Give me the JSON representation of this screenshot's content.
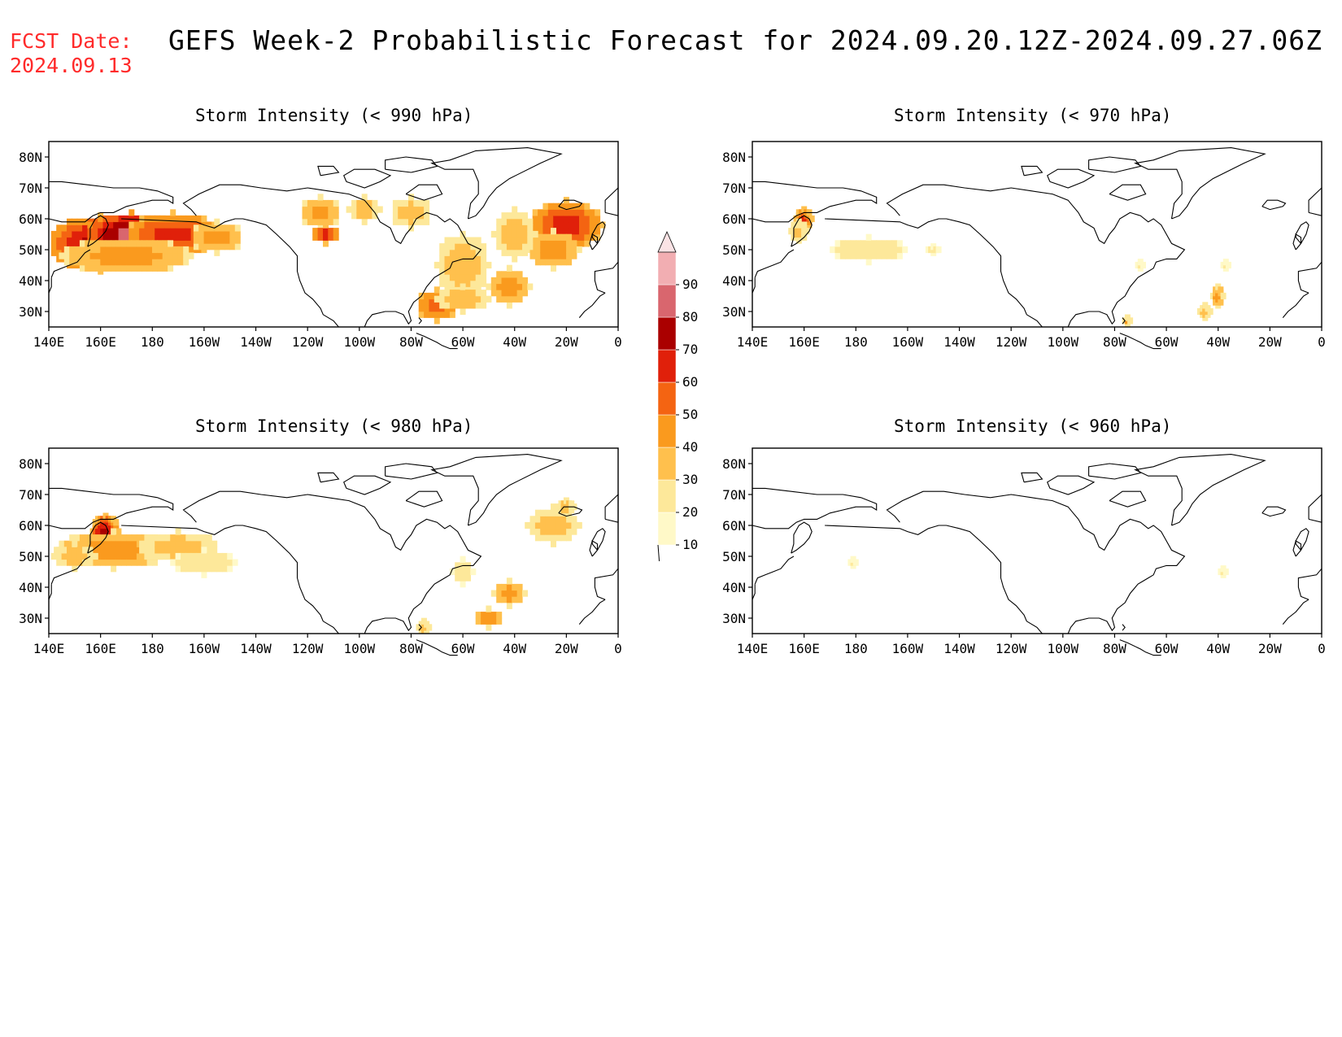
{
  "forecast_date": {
    "label": "FCST Date:",
    "value": "2024.09.13"
  },
  "title": "GEFS Week-2 Probabilistic Forecast for 2024.09.20.12Z-2024.09.27.06Z",
  "lat_ticks": [
    "80N",
    "70N",
    "60N",
    "50N",
    "40N",
    "30N"
  ],
  "lon_ticks": [
    "140E",
    "160E",
    "180",
    "160W",
    "140W",
    "120W",
    "100W",
    "80W",
    "60W",
    "40W",
    "20W",
    "0"
  ],
  "colorbar": {
    "levels": [
      "10",
      "20",
      "30",
      "40",
      "50",
      "60",
      "70",
      "80",
      "90"
    ],
    "colors": [
      "#fff9c8",
      "#fde89a",
      "#ffc04d",
      "#fa9a1e",
      "#f46412",
      "#e0200a",
      "#aa0000",
      "#d9666e",
      "#f2aeb2",
      "#fbe3e5"
    ]
  },
  "panels": [
    {
      "id": "p990",
      "title": "Storm Intensity (< 990 hPa)"
    },
    {
      "id": "p970",
      "title": "Storm Intensity (< 970 hPa)"
    },
    {
      "id": "p980",
      "title": "Storm Intensity (< 980 hPa)"
    },
    {
      "id": "p960",
      "title": "Storm Intensity (< 960 hPa)"
    }
  ]
}
